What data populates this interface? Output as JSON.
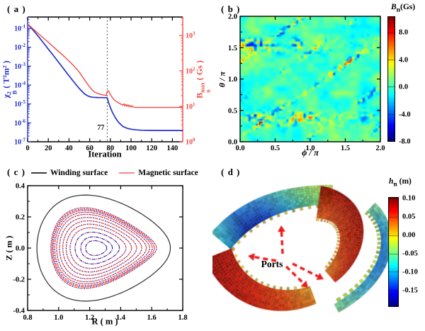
{
  "figure": {
    "background": "#ffffff"
  },
  "chart_data": [
    {
      "id": "a",
      "type": "line",
      "panel_label": "( a )",
      "xlabel": "Iteration",
      "xlim": [
        0,
        150
      ],
      "xticks": [
        {
          "v": 0,
          "label": "0"
        },
        {
          "v": 20,
          "label": "20"
        },
        {
          "v": 40,
          "label": "40"
        },
        {
          "v": 60,
          "label": "60"
        },
        {
          "v": 80,
          "label": "80"
        },
        {
          "v": 100,
          "label": "100"
        },
        {
          "v": 120,
          "label": "120"
        },
        {
          "v": 140,
          "label": "140"
        }
      ],
      "ylabel_left_parts": {
        "sym": "χ",
        "sup": "2",
        "sub": "B",
        "unit": " ( T²m² )"
      },
      "ylabel_right_parts": {
        "sym": "B",
        "sup": "max",
        "sub": "n",
        "unit": " ( Gs )"
      },
      "left_scale": "log",
      "left_ylim": [
        1e-07,
        0.4
      ],
      "left_ticks": [
        {
          "exp": -1
        },
        {
          "exp": -2
        },
        {
          "exp": -3
        },
        {
          "exp": -4
        },
        {
          "exp": -5
        },
        {
          "exp": -6
        },
        {
          "exp": -7
        }
      ],
      "right_scale": "log",
      "right_ylim": [
        1,
        3300
      ],
      "right_ticks": [
        {
          "exp": 0
        },
        {
          "exp": 1
        },
        {
          "exp": 2
        },
        {
          "exp": 3
        }
      ],
      "vline": {
        "x": 77,
        "label": "77"
      },
      "series": [
        {
          "name": "chi-squared-B",
          "axis": "left",
          "color": "#2430c8",
          "x": [
            0,
            5,
            10,
            15,
            20,
            25,
            30,
            35,
            40,
            45,
            50,
            55,
            58,
            61,
            64,
            68,
            72,
            76,
            77,
            78,
            80,
            82,
            85,
            88,
            92,
            96,
            100,
            105,
            110,
            120,
            130,
            140,
            150
          ],
          "y": [
            0.17,
            0.085,
            0.04,
            0.018,
            0.008,
            0.0036,
            0.0016,
            0.0007,
            0.00031,
            0.00014,
            6.5e-05,
            3.4e-05,
            2.7e-05,
            2.35e-05,
            2.25e-05,
            2.2e-05,
            2.18e-05,
            2.15e-05,
            2.1e-05,
            1.3e-05,
            6.5e-06,
            3.6e-06,
            1.8e-06,
            1.05e-06,
            6.5e-07,
            5.2e-07,
            4.6e-07,
            4.25e-07,
            4.1e-07,
            4e-07,
            3.95e-07,
            3.95e-07,
            3.95e-07
          ]
        },
        {
          "name": "Bn-max",
          "axis": "right",
          "color": "#ef4a44",
          "x": [
            0,
            5,
            10,
            15,
            20,
            25,
            30,
            35,
            40,
            45,
            50,
            54,
            58,
            61,
            64,
            67,
            70,
            73,
            76,
            77,
            78,
            79,
            80,
            82,
            84,
            86,
            88,
            90,
            92,
            93,
            94,
            95,
            96,
            97,
            98,
            99,
            100,
            101,
            102,
            103,
            105,
            110,
            120,
            130,
            140,
            150
          ],
          "y": [
            2100,
            1550,
            1150,
            850,
            640,
            470,
            350,
            260,
            190,
            135,
            92,
            62,
            42,
            32,
            26,
            23.5,
            22,
            21,
            20.2,
            26,
            27.5,
            25,
            21.5,
            17.5,
            15,
            13.5,
            12.5,
            11.5,
            10.8,
            11.8,
            10.2,
            11.4,
            10,
            11,
            9.8,
            10.6,
            9.6,
            10.4,
            9.5,
            9.4,
            9.3,
            9.3,
            9.3,
            9.3,
            9.3,
            9.3
          ]
        }
      ]
    },
    {
      "id": "b",
      "type": "heatmap",
      "panel_label": "( b )",
      "xlabel": "ϕ / π",
      "ylabel": "θ / π",
      "xlim": [
        0,
        2
      ],
      "ylim": [
        0,
        2
      ],
      "xticks": [
        {
          "v": 0,
          "label": "0.0"
        },
        {
          "v": 0.5,
          "label": "0.5"
        },
        {
          "v": 1,
          "label": "1.0"
        },
        {
          "v": 1.5,
          "label": "1.5"
        },
        {
          "v": 2,
          "label": "2.0"
        }
      ],
      "yticks": [
        {
          "v": 0,
          "label": "0.0"
        },
        {
          "v": 0.5,
          "label": "0.5"
        },
        {
          "v": 1,
          "label": "1.0"
        },
        {
          "v": 1.5,
          "label": "1.5"
        },
        {
          "v": 2,
          "label": "2.0"
        }
      ],
      "value_label_parts": {
        "sym": "B",
        "sub": "n",
        "unit": "(Gs)"
      },
      "colorbar": {
        "range": [
          -8,
          10.4
        ],
        "colormap": "jet",
        "ticks": [
          {
            "v": 8,
            "label": "8.0"
          },
          {
            "v": 4,
            "label": "4.0"
          },
          {
            "v": 0,
            "label": "0.0"
          },
          {
            "v": -4,
            "label": "-4.0"
          },
          {
            "v": -8,
            "label": "-8.0"
          }
        ]
      },
      "pattern": {
        "seed": 7,
        "grid": [
          112,
          100
        ],
        "noise_amp": 2.2,
        "streak_slope": 0.78,
        "streak_offsets": [
          0.07,
          0.66,
          1.3
        ],
        "streak_amp": 10,
        "band_centers": [
          0.37,
          1.55
        ],
        "band_amp": 9,
        "description": "residual normal-field error: green-cyan turbulent background with red/blue speckled diagonal resonant ripples and horizontal turbulent bands"
      }
    },
    {
      "id": "c",
      "type": "line",
      "panel_label": "( c )",
      "xlabel": "R ( m )",
      "ylabel": "Z ( m )",
      "xlim": [
        0.8,
        1.8
      ],
      "ylim": [
        -0.4,
        0.4
      ],
      "xticks": [
        {
          "v": 0.8,
          "label": "0.8"
        },
        {
          "v": 1.0,
          "label": "1.0"
        },
        {
          "v": 1.2,
          "label": "1.2"
        },
        {
          "v": 1.4,
          "label": "1.4"
        },
        {
          "v": 1.6,
          "label": "1.6"
        },
        {
          "v": 1.8,
          "label": "1.8"
        }
      ],
      "yticks": [
        {
          "v": -0.4,
          "label": "-0.4"
        },
        {
          "v": -0.2,
          "label": "-0.2"
        },
        {
          "v": 0,
          "label": "0.0"
        },
        {
          "v": 0.2,
          "label": "0.2"
        },
        {
          "v": 0.4,
          "label": "0.4"
        }
      ],
      "legend": [
        {
          "label": "Winding surface",
          "color": "#3c3c3c"
        },
        {
          "label": "Magnetic surface",
          "color": "#f28a8a"
        }
      ],
      "winding_surface": {
        "center_R": 1.29,
        "a": 0.43,
        "b": 0.325,
        "egg": 0.32,
        "color": "#3c3c3c"
      },
      "magnetic_surfaces": {
        "center_R": 1.24,
        "shafranov_shift": 0.05,
        "a_max": 0.34,
        "b_max": 0.235,
        "egg_base": 0.1,
        "egg_gain": 0.4,
        "fractions": [
          0.2,
          0.3,
          0.42,
          0.53,
          0.62,
          0.7,
          0.78,
          0.85,
          0.9,
          0.94,
          0.97,
          1.0
        ],
        "dash_color": "#e04444",
        "dot_color": "#2626b6"
      }
    },
    {
      "id": "d",
      "type": "3d-surface",
      "panel_label": "( d )",
      "annotation": "Ports",
      "value_label_parts": {
        "sym": "h",
        "sub": "n",
        "unit": " (m)"
      },
      "colorbar": {
        "range": [
          -0.194,
          0.104
        ],
        "colormap": "jet",
        "ticks": [
          {
            "v": 0.1,
            "label": "0.10"
          },
          {
            "v": 0.05,
            "label": "0.05"
          },
          {
            "v": 0,
            "label": "0.00"
          },
          {
            "v": -0.05,
            "label": "-0.05"
          },
          {
            "v": -0.1,
            "label": "-0.10"
          },
          {
            "v": -0.15,
            "label": "-0.15"
          }
        ]
      },
      "arrow_color": "#e81d1d",
      "arrows": [
        {
          "from": [
            99,
            128
          ],
          "to": [
            97,
            88
          ]
        },
        {
          "from": [
            90,
            138
          ],
          "to": [
            50,
            131
          ]
        },
        {
          "from": [
            104,
            146
          ],
          "to": [
            135,
            176
          ]
        },
        {
          "from": [
            113,
            142
          ],
          "to": [
            157,
            164
          ]
        }
      ],
      "segments": [
        {
          "name": "upper-left-saddle",
          "path": [
            [
              12,
              110
            ],
            [
              55,
              58
            ],
            [
              112,
              46
            ],
            [
              170,
              44
            ]
          ],
          "w": [
            36,
            26
          ],
          "rows": 8,
          "stops_a": [
            "#50c8c0",
            "#2878d0",
            "#3896d8",
            "#58c8a8",
            "#90d060",
            "#c4dc54"
          ],
          "stops_b": [
            "#1890c0",
            "#081c90",
            "#0a30b4",
            "#2090cc",
            "#50bc88",
            "#9cc84c"
          ],
          "teeth": {
            "side": 1,
            "color": "#c2ae42",
            "every": 3,
            "len": 4
          }
        },
        {
          "name": "upper-right-shell",
          "path": [
            [
              150,
              55
            ],
            [
              210,
              62
            ],
            [
              208,
              125
            ],
            [
              166,
              160
            ]
          ],
          "w": [
            46,
            22
          ],
          "rows": 10,
          "stops_a": [
            "#8c1008",
            "#941008",
            "#a01408",
            "#b01808",
            "#c02008"
          ],
          "stops_b": [
            "#d85814",
            "#d04010",
            "#cc3008",
            "#d04010",
            "#e08820"
          ],
          "teeth": {
            "side": 1,
            "color": "#e8a838",
            "every": 2,
            "len": 4
          }
        },
        {
          "name": "lower-left-shell",
          "path": [
            [
              8,
              128
            ],
            [
              28,
              182
            ],
            [
              85,
              208
            ],
            [
              142,
              186
            ]
          ],
          "w": [
            40,
            26
          ],
          "rows": 9,
          "stops_a": [
            "#b01408",
            "#c41808",
            "#d02408",
            "#dc4c10",
            "#e0a028"
          ],
          "stops_b": [
            "#8c0c08",
            "#a81008",
            "#c01808",
            "#cc3008",
            "#d87818"
          ],
          "teeth": {
            "side": -1,
            "color": "#d8b838",
            "every": 3,
            "len": 4
          }
        },
        {
          "name": "right-arc",
          "path": [
            [
              224,
              62
            ],
            [
              262,
              96
            ],
            [
              252,
              162
            ],
            [
              175,
              205
            ]
          ],
          "w": [
            16,
            13
          ],
          "rows": 4,
          "stops_a": [
            "#88cc88",
            "#48b8c0",
            "#30a0d4",
            "#2c80cc",
            "#48a8c4",
            "#88cc90"
          ],
          "stops_b": [
            "#58b890",
            "#2890c8",
            "#1868c0",
            "#2070c4",
            "#309cc0",
            "#60b888"
          ],
          "teeth": {
            "side": 1,
            "color": "#a8cc50",
            "every": 2,
            "len": 5
          }
        }
      ]
    }
  ]
}
